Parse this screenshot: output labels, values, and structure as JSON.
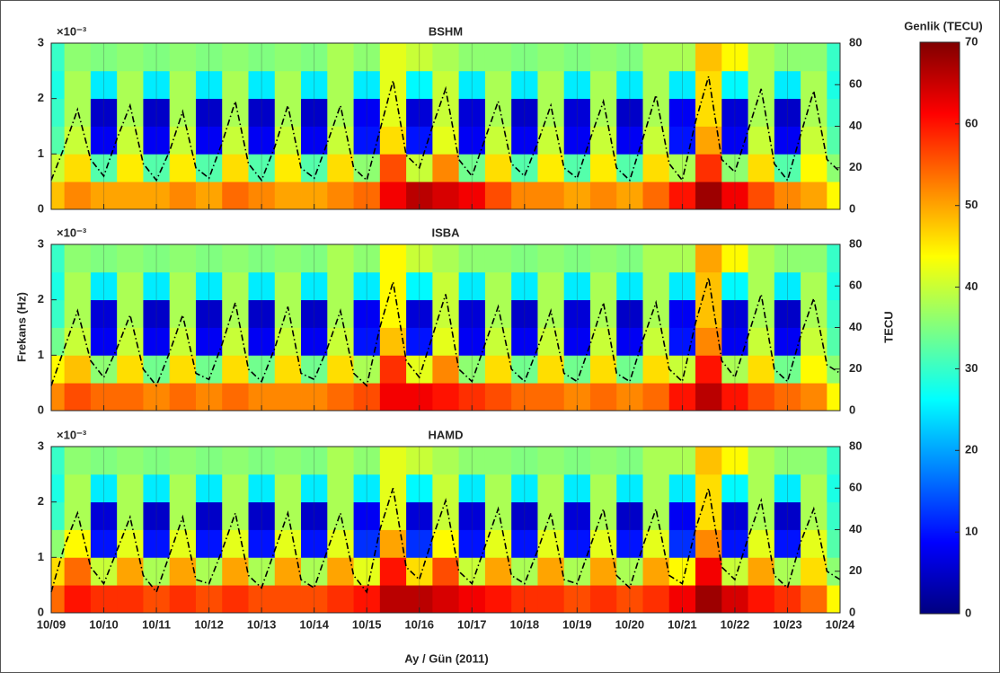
{
  "figure": {
    "xlabel": "Ay / Gün (2011)",
    "ylabel": "Frekans (Hz)",
    "y2label": "TECU",
    "xlim": [
      0,
      15
    ],
    "grid": true,
    "xticks": [
      {
        "value": 0,
        "label": "10/09"
      },
      {
        "value": 1,
        "label": "10/10"
      },
      {
        "value": 2,
        "label": "10/11"
      },
      {
        "value": 3,
        "label": "10/12"
      },
      {
        "value": 4,
        "label": "10/13"
      },
      {
        "value": 5,
        "label": "10/14"
      },
      {
        "value": 6,
        "label": "10/15"
      },
      {
        "value": 7,
        "label": "10/16"
      },
      {
        "value": 8,
        "label": "10/17"
      },
      {
        "value": 9,
        "label": "10/18"
      },
      {
        "value": 10,
        "label": "10/19"
      },
      {
        "value": 11,
        "label": "10/20"
      },
      {
        "value": 12,
        "label": "10/21"
      },
      {
        "value": 13,
        "label": "10/22"
      },
      {
        "value": 14,
        "label": "10/23"
      },
      {
        "value": 15,
        "label": "10/24"
      }
    ],
    "colorbar": {
      "title": "Genlik (TECU)",
      "colormap": "jet",
      "lim": [
        0,
        70
      ],
      "ticks": [
        0,
        10,
        20,
        30,
        40,
        50,
        60,
        70
      ]
    }
  },
  "chart_data": [
    {
      "type": "heatmap",
      "title": "BSHM",
      "y_multiplier": "×10⁻³",
      "ylim": [
        0,
        3
      ],
      "yticks": [
        0,
        1,
        2,
        3
      ],
      "y2lim": [
        0,
        80
      ],
      "y2ticks": [
        0,
        20,
        40,
        60,
        80
      ],
      "x": [
        0,
        0.5,
        1,
        1.5,
        2,
        2.5,
        3,
        3.5,
        4,
        4.5,
        5,
        5.5,
        6,
        6.5,
        7,
        7.5,
        8,
        8.5,
        9,
        9.5,
        10,
        10.5,
        11,
        11.5,
        12,
        12.5,
        13,
        13.5,
        14,
        14.5,
        15
      ],
      "y": [
        0.25,
        0.75,
        1.25,
        1.75,
        2.25,
        2.75
      ],
      "z": [
        [
          48,
          52,
          50,
          50,
          50,
          52,
          50,
          54,
          52,
          50,
          50,
          52,
          54,
          62,
          66,
          64,
          62,
          56,
          52,
          52,
          50,
          52,
          50,
          54,
          60,
          68,
          62,
          56,
          52,
          50,
          44
        ],
        [
          40,
          46,
          32,
          45,
          32,
          45,
          32,
          46,
          32,
          45,
          32,
          46,
          36,
          56,
          40,
          52,
          34,
          46,
          32,
          45,
          32,
          45,
          32,
          46,
          38,
          58,
          36,
          46,
          32,
          44,
          36
        ],
        [
          32,
          40,
          8,
          40,
          8,
          40,
          8,
          40,
          8,
          40,
          8,
          40,
          10,
          46,
          10,
          42,
          8,
          40,
          8,
          40,
          8,
          40,
          8,
          40,
          10,
          50,
          8,
          40,
          8,
          40,
          32
        ],
        [
          30,
          38,
          5,
          38,
          5,
          38,
          5,
          38,
          5,
          38,
          5,
          38,
          8,
          42,
          6,
          40,
          6,
          38,
          5,
          38,
          6,
          38,
          5,
          38,
          8,
          46,
          6,
          38,
          5,
          38,
          30
        ],
        [
          28,
          38,
          25,
          38,
          25,
          38,
          25,
          38,
          25,
          38,
          25,
          38,
          25,
          42,
          26,
          40,
          25,
          38,
          25,
          38,
          25,
          38,
          25,
          38,
          25,
          46,
          26,
          38,
          25,
          38,
          28
        ],
        [
          30,
          36,
          35,
          36,
          35,
          36,
          35,
          36,
          35,
          36,
          35,
          38,
          36,
          42,
          40,
          38,
          36,
          36,
          35,
          36,
          35,
          36,
          35,
          38,
          38,
          48,
          44,
          38,
          36,
          36,
          30
        ]
      ],
      "line": {
        "axis": "y2",
        "color": "#000000",
        "x": [
          0,
          0.25,
          0.5,
          0.75,
          1,
          1.25,
          1.5,
          1.75,
          2,
          2.25,
          2.5,
          2.75,
          3,
          3.25,
          3.5,
          3.75,
          4,
          4.25,
          4.5,
          4.75,
          5,
          5.25,
          5.5,
          5.75,
          6,
          6.25,
          6.5,
          6.75,
          7,
          7.25,
          7.5,
          7.75,
          8,
          8.25,
          8.5,
          8.75,
          9,
          9.25,
          9.5,
          9.75,
          10,
          10.25,
          10.5,
          10.75,
          11,
          11.25,
          11.5,
          11.75,
          12,
          12.25,
          12.5,
          12.75,
          13,
          13.25,
          13.5,
          13.75,
          14,
          14.25,
          14.5,
          14.75,
          15
        ],
        "values": [
          14,
          30,
          48,
          24,
          16,
          34,
          50,
          22,
          14,
          28,
          47,
          20,
          15,
          32,
          52,
          22,
          14,
          30,
          50,
          20,
          15,
          32,
          50,
          20,
          14,
          38,
          62,
          26,
          20,
          40,
          58,
          24,
          16,
          34,
          52,
          22,
          16,
          32,
          50,
          20,
          15,
          34,
          52,
          20,
          14,
          34,
          55,
          22,
          14,
          42,
          64,
          24,
          18,
          38,
          58,
          22,
          14,
          36,
          57,
          24,
          18
        ]
      }
    },
    {
      "type": "heatmap",
      "title": "ISBA",
      "y_multiplier": "×10⁻³",
      "ylim": [
        0,
        3
      ],
      "yticks": [
        0,
        1,
        2,
        3
      ],
      "y2lim": [
        0,
        80
      ],
      "y2ticks": [
        0,
        20,
        40,
        60,
        80
      ],
      "x": [
        0,
        0.5,
        1,
        1.5,
        2,
        2.5,
        3,
        3.5,
        4,
        4.5,
        5,
        5.5,
        6,
        6.5,
        7,
        7.5,
        8,
        8.5,
        9,
        9.5,
        10,
        10.5,
        11,
        11.5,
        12,
        12.5,
        13,
        13.5,
        14,
        14.5,
        15
      ],
      "y": [
        0.25,
        0.75,
        1.25,
        1.75,
        2.25,
        2.75
      ],
      "z": [
        [
          52,
          56,
          54,
          54,
          52,
          54,
          52,
          54,
          52,
          52,
          52,
          54,
          56,
          62,
          62,
          60,
          58,
          56,
          54,
          54,
          52,
          54,
          52,
          54,
          60,
          66,
          60,
          56,
          54,
          52,
          44
        ],
        [
          44,
          48,
          36,
          46,
          34,
          46,
          34,
          46,
          34,
          46,
          34,
          46,
          38,
          58,
          42,
          52,
          36,
          46,
          34,
          46,
          34,
          46,
          34,
          46,
          40,
          60,
          38,
          46,
          34,
          44,
          36
        ],
        [
          34,
          40,
          8,
          40,
          8,
          40,
          8,
          40,
          8,
          40,
          8,
          40,
          10,
          48,
          10,
          42,
          8,
          40,
          8,
          40,
          8,
          40,
          8,
          40,
          10,
          52,
          8,
          40,
          8,
          40,
          32
        ],
        [
          30,
          38,
          6,
          38,
          5,
          38,
          5,
          38,
          5,
          38,
          5,
          38,
          8,
          44,
          6,
          40,
          6,
          38,
          5,
          38,
          6,
          38,
          5,
          38,
          8,
          48,
          6,
          38,
          5,
          38,
          30
        ],
        [
          28,
          38,
          25,
          38,
          25,
          38,
          25,
          38,
          25,
          38,
          25,
          38,
          25,
          44,
          26,
          40,
          25,
          38,
          25,
          38,
          25,
          38,
          25,
          38,
          25,
          48,
          26,
          38,
          25,
          38,
          28
        ],
        [
          30,
          36,
          35,
          36,
          35,
          36,
          35,
          36,
          35,
          36,
          35,
          38,
          36,
          44,
          40,
          38,
          36,
          36,
          35,
          36,
          35,
          36,
          35,
          38,
          38,
          50,
          44,
          38,
          36,
          36,
          30
        ]
      ],
      "line": {
        "axis": "y2",
        "color": "#000000",
        "x": [
          0,
          0.25,
          0.5,
          0.75,
          1,
          1.25,
          1.5,
          1.75,
          2,
          2.25,
          2.5,
          2.75,
          3,
          3.25,
          3.5,
          3.75,
          4,
          4.25,
          4.5,
          4.75,
          5,
          5.25,
          5.5,
          5.75,
          6,
          6.25,
          6.5,
          6.75,
          7,
          7.25,
          7.5,
          7.75,
          8,
          8.25,
          8.5,
          8.75,
          9,
          9.25,
          9.5,
          9.75,
          10,
          10.25,
          10.5,
          10.75,
          11,
          11.25,
          11.5,
          11.75,
          12,
          12.25,
          12.5,
          12.75,
          13,
          13.25,
          13.5,
          13.75,
          14,
          14.25,
          14.5,
          14.75,
          15
        ],
        "values": [
          12,
          30,
          48,
          24,
          16,
          30,
          46,
          20,
          12,
          28,
          46,
          18,
          15,
          32,
          52,
          20,
          14,
          30,
          50,
          18,
          15,
          30,
          48,
          18,
          12,
          40,
          62,
          24,
          16,
          36,
          56,
          20,
          14,
          32,
          50,
          20,
          14,
          30,
          48,
          18,
          14,
          32,
          52,
          18,
          14,
          34,
          52,
          20,
          14,
          42,
          64,
          24,
          16,
          36,
          56,
          20,
          14,
          36,
          54,
          22,
          18
        ]
      }
    },
    {
      "type": "heatmap",
      "title": "HAMD",
      "y_multiplier": "×10⁻³",
      "ylim": [
        0,
        3
      ],
      "yticks": [
        0,
        1,
        2,
        3
      ],
      "y2lim": [
        0,
        80
      ],
      "y2ticks": [
        0,
        20,
        40,
        60,
        80
      ],
      "x": [
        0,
        0.5,
        1,
        1.5,
        2,
        2.5,
        3,
        3.5,
        4,
        4.5,
        5,
        5.5,
        6,
        6.5,
        7,
        7.5,
        8,
        8.5,
        9,
        9.5,
        10,
        10.5,
        11,
        11.5,
        12,
        12.5,
        13,
        13.5,
        14,
        14.5,
        15
      ],
      "y": [
        0.25,
        0.75,
        1.25,
        1.75,
        2.25,
        2.75
      ],
      "z": [
        [
          54,
          60,
          58,
          58,
          56,
          58,
          56,
          58,
          56,
          56,
          56,
          58,
          60,
          66,
          66,
          64,
          62,
          60,
          58,
          58,
          56,
          58,
          56,
          58,
          62,
          68,
          64,
          60,
          58,
          54,
          44
        ],
        [
          46,
          54,
          40,
          50,
          38,
          50,
          38,
          50,
          38,
          50,
          38,
          50,
          42,
          60,
          46,
          56,
          40,
          50,
          38,
          50,
          38,
          50,
          38,
          50,
          44,
          62,
          40,
          50,
          38,
          46,
          36
        ],
        [
          36,
          44,
          10,
          42,
          10,
          42,
          10,
          42,
          10,
          42,
          10,
          42,
          12,
          50,
          12,
          44,
          10,
          42,
          10,
          42,
          10,
          42,
          10,
          42,
          12,
          52,
          10,
          42,
          10,
          42,
          32
        ],
        [
          30,
          38,
          6,
          38,
          5,
          38,
          5,
          38,
          5,
          38,
          5,
          38,
          8,
          42,
          6,
          40,
          6,
          38,
          5,
          38,
          6,
          38,
          5,
          38,
          8,
          46,
          6,
          38,
          5,
          38,
          30
        ],
        [
          28,
          38,
          25,
          38,
          25,
          38,
          25,
          38,
          25,
          38,
          25,
          38,
          25,
          42,
          26,
          40,
          25,
          38,
          25,
          38,
          25,
          38,
          25,
          38,
          25,
          46,
          26,
          38,
          25,
          38,
          28
        ],
        [
          30,
          36,
          35,
          36,
          35,
          36,
          35,
          36,
          35,
          36,
          35,
          38,
          36,
          42,
          40,
          38,
          36,
          36,
          35,
          36,
          35,
          36,
          35,
          38,
          38,
          48,
          44,
          38,
          36,
          36,
          30
        ]
      ],
      "line": {
        "axis": "y2",
        "color": "#000000",
        "x": [
          0,
          0.25,
          0.5,
          0.75,
          1,
          1.25,
          1.5,
          1.75,
          2,
          2.25,
          2.5,
          2.75,
          3,
          3.25,
          3.5,
          3.75,
          4,
          4.25,
          4.5,
          4.75,
          5,
          5.25,
          5.5,
          5.75,
          6,
          6.25,
          6.5,
          6.75,
          7,
          7.25,
          7.5,
          7.75,
          8,
          8.25,
          8.5,
          8.75,
          9,
          9.25,
          9.5,
          9.75,
          10,
          10.25,
          10.5,
          10.75,
          11,
          11.25,
          11.5,
          11.75,
          12,
          12.25,
          12.5,
          12.75,
          13,
          13.25,
          13.5,
          13.75,
          14,
          14.25,
          14.5,
          14.75,
          15
        ],
        "values": [
          10,
          32,
          48,
          22,
          14,
          30,
          46,
          18,
          10,
          28,
          46,
          16,
          14,
          30,
          48,
          18,
          12,
          30,
          48,
          16,
          12,
          30,
          48,
          18,
          10,
          40,
          60,
          22,
          16,
          36,
          54,
          20,
          14,
          32,
          50,
          18,
          14,
          30,
          48,
          16,
          14,
          32,
          50,
          18,
          12,
          32,
          50,
          18,
          14,
          40,
          60,
          22,
          16,
          36,
          54,
          18,
          12,
          34,
          50,
          20,
          16
        ]
      }
    }
  ]
}
